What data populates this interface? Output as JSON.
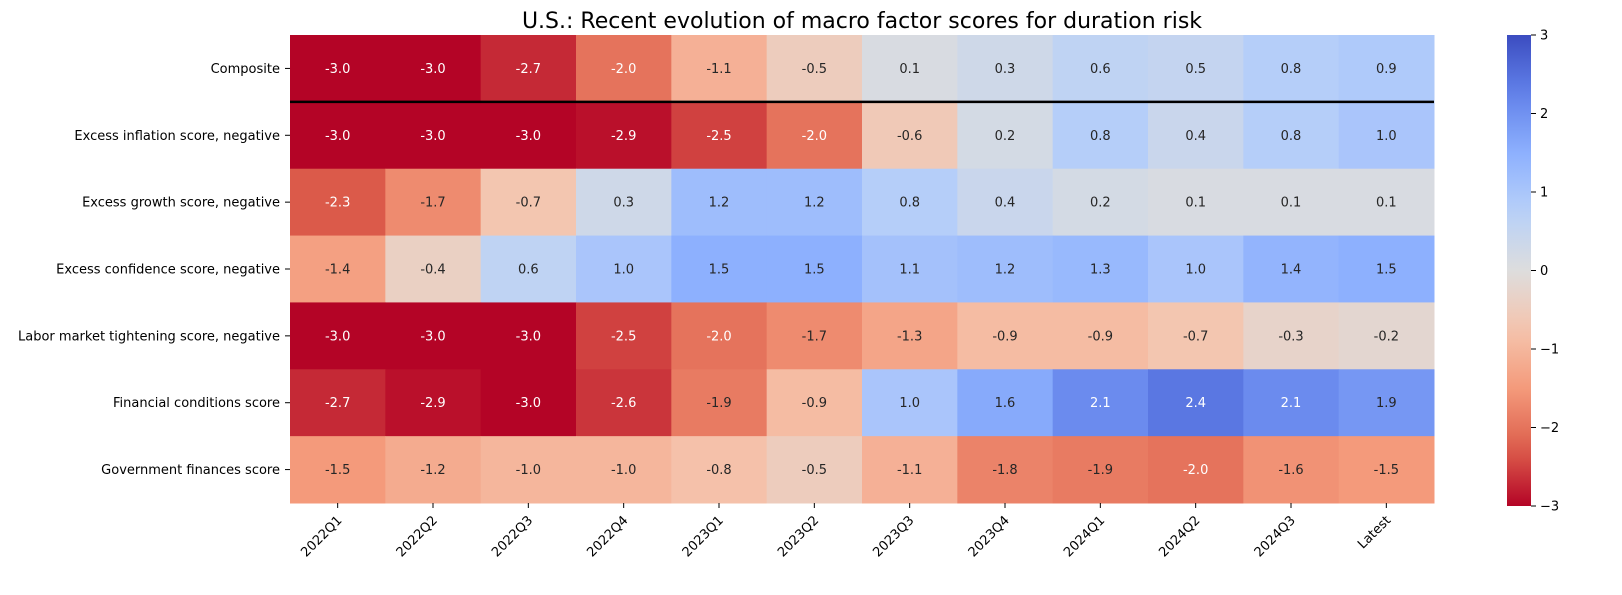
{
  "chart_data": {
    "type": "heatmap",
    "title": "U.S.: Recent evolution of macro factor scores for duration risk",
    "xlabel": "",
    "ylabel": "",
    "x_categories": [
      "2022Q1",
      "2022Q2",
      "2022Q3",
      "2022Q4",
      "2023Q1",
      "2023Q2",
      "2023Q3",
      "2023Q4",
      "2024Q1",
      "2024Q2",
      "2024Q3",
      "Latest"
    ],
    "y_categories": [
      "Composite",
      "Excess inflation score, negative",
      "Excess growth score, negative",
      "Excess confidence score, negative",
      "Labor market tightening score, negative",
      "Financial conditions score",
      "Government finances score"
    ],
    "values": [
      [
        -3.0,
        -3.0,
        -2.7,
        -2.0,
        -1.1,
        -0.5,
        0.1,
        0.3,
        0.6,
        0.5,
        0.8,
        0.9
      ],
      [
        -3.0,
        -3.0,
        -3.0,
        -2.9,
        -2.5,
        -2.0,
        -0.6,
        0.2,
        0.8,
        0.4,
        0.8,
        1.0
      ],
      [
        -2.3,
        -1.7,
        -0.7,
        0.3,
        1.2,
        1.2,
        0.8,
        0.4,
        0.2,
        0.1,
        0.1,
        0.1
      ],
      [
        -1.4,
        -0.4,
        0.6,
        1.0,
        1.5,
        1.5,
        1.1,
        1.2,
        1.3,
        1.0,
        1.4,
        1.5
      ],
      [
        -3.0,
        -3.0,
        -3.0,
        -2.5,
        -2.0,
        -1.7,
        -1.3,
        -0.9,
        -0.9,
        -0.7,
        -0.3,
        -0.2
      ],
      [
        -2.7,
        -2.9,
        -3.0,
        -2.6,
        -1.9,
        -0.9,
        1.0,
        1.6,
        2.1,
        2.4,
        2.1,
        1.9
      ],
      [
        -1.5,
        -1.2,
        -1.0,
        -1.0,
        -0.8,
        -0.5,
        -1.1,
        -1.8,
        -1.9,
        -2.0,
        -1.6,
        -1.5
      ]
    ],
    "colormap": "coolwarm_r",
    "vmin": -3,
    "vmax": 3,
    "colorbar_ticks": [
      "3",
      "2",
      "1",
      "0",
      "−1",
      "−2",
      "−3"
    ],
    "colorbar_tick_values": [
      3,
      2,
      1,
      0,
      -1,
      -2,
      -3
    ],
    "separator_after_row": 0,
    "grid": false,
    "legend": "colorbar-right"
  }
}
